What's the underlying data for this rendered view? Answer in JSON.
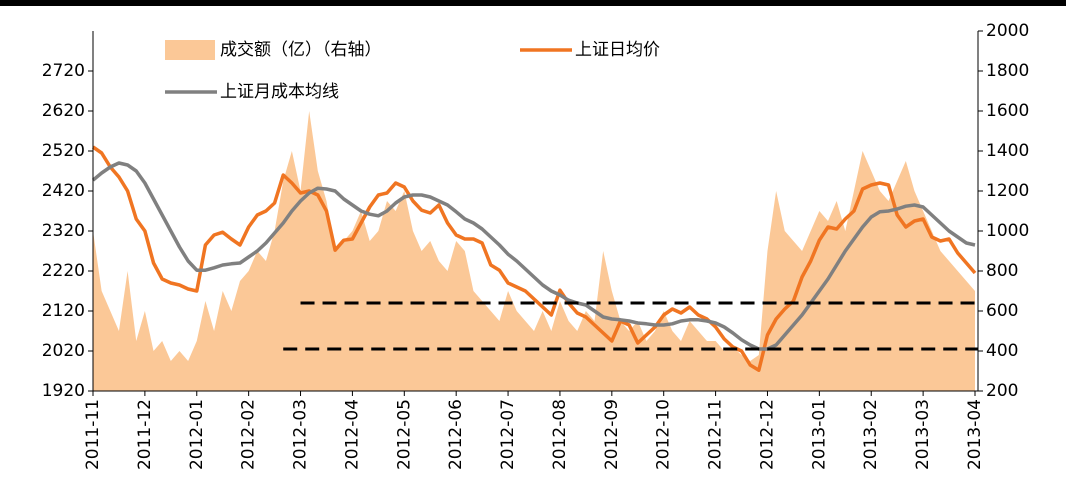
{
  "chart_data": {
    "type": "line",
    "categories": [
      "2011-11",
      null,
      null,
      null,
      null,
      null,
      "2011-12",
      null,
      null,
      null,
      null,
      null,
      "2012-01",
      null,
      null,
      null,
      null,
      null,
      "2012-02",
      null,
      null,
      null,
      null,
      null,
      "2012-03",
      null,
      null,
      null,
      null,
      null,
      "2012-04",
      null,
      null,
      null,
      null,
      null,
      "2012-05",
      null,
      null,
      null,
      null,
      null,
      "2012-06",
      null,
      null,
      null,
      null,
      null,
      "2012-07",
      null,
      null,
      null,
      null,
      null,
      "2012-08",
      null,
      null,
      null,
      null,
      null,
      "2012-09",
      null,
      null,
      null,
      null,
      null,
      "2012-10",
      null,
      null,
      null,
      null,
      null,
      "2012-11",
      null,
      null,
      null,
      null,
      null,
      "2012-12",
      null,
      null,
      null,
      null,
      null,
      "2013-01",
      null,
      null,
      null,
      null,
      null,
      "2013-02",
      null,
      null,
      null,
      null,
      null,
      "2013-03",
      null,
      null,
      null,
      null,
      null,
      "2013-04"
    ],
    "series": [
      {
        "name": "成交额（亿）（右轴）",
        "type": "area",
        "axis": "y2",
        "color": "#fbc897",
        "values": [
          1000,
          700,
          600,
          500,
          800,
          450,
          600,
          400,
          450,
          350,
          400,
          350,
          450,
          650,
          500,
          700,
          600,
          750,
          800,
          900,
          850,
          1000,
          1250,
          1400,
          1200,
          1600,
          1300,
          1150,
          900,
          950,
          1000,
          1100,
          950,
          1000,
          1150,
          1100,
          1200,
          1000,
          900,
          950,
          850,
          800,
          950,
          900,
          700,
          650,
          600,
          550,
          700,
          600,
          550,
          500,
          600,
          500,
          650,
          550,
          500,
          600,
          550,
          900,
          700,
          550,
          500,
          550,
          450,
          500,
          600,
          500,
          450,
          550,
          500,
          450,
          450,
          400,
          420,
          380,
          350,
          380,
          900,
          1200,
          1000,
          950,
          900,
          1000,
          1100,
          1050,
          1150,
          1000,
          1200,
          1400,
          1300,
          1200,
          1150,
          1250,
          1350,
          1200,
          1100,
          1000,
          900,
          850,
          800,
          750,
          700
        ]
      },
      {
        "name": "上证日均价",
        "color": "#f07522",
        "values": [
          2530,
          2515,
          2480,
          2455,
          2420,
          2350,
          2320,
          2240,
          2200,
          2190,
          2185,
          2175,
          2170,
          2285,
          2310,
          2317,
          2300,
          2285,
          2330,
          2360,
          2370,
          2390,
          2460,
          2440,
          2415,
          2420,
          2410,
          2370,
          2272,
          2297,
          2300,
          2340,
          2380,
          2410,
          2415,
          2440,
          2430,
          2395,
          2372,
          2365,
          2385,
          2340,
          2310,
          2300,
          2300,
          2290,
          2235,
          2222,
          2190,
          2180,
          2170,
          2150,
          2130,
          2110,
          2172,
          2140,
          2115,
          2105,
          2085,
          2065,
          2045,
          2095,
          2085,
          2040,
          2060,
          2080,
          2110,
          2125,
          2115,
          2130,
          2110,
          2100,
          2080,
          2050,
          2030,
          2020,
          1985,
          1972,
          2060,
          2100,
          2125,
          2145,
          2205,
          2245,
          2297,
          2330,
          2325,
          2350,
          2370,
          2425,
          2435,
          2440,
          2435,
          2360,
          2330,
          2345,
          2350,
          2305,
          2295,
          2300,
          2265,
          2240,
          2215
        ]
      },
      {
        "name": "上证月成本均线",
        "color": "#808080",
        "values": [
          2447,
          2465,
          2480,
          2490,
          2485,
          2470,
          2440,
          2400,
          2360,
          2320,
          2280,
          2245,
          2222,
          2222,
          2228,
          2235,
          2238,
          2240,
          2255,
          2270,
          2290,
          2315,
          2340,
          2370,
          2395,
          2415,
          2427,
          2425,
          2420,
          2400,
          2385,
          2370,
          2362,
          2358,
          2370,
          2390,
          2405,
          2410,
          2410,
          2405,
          2395,
          2385,
          2368,
          2350,
          2340,
          2325,
          2305,
          2285,
          2262,
          2245,
          2225,
          2205,
          2185,
          2170,
          2160,
          2147,
          2140,
          2135,
          2120,
          2105,
          2100,
          2098,
          2095,
          2090,
          2088,
          2085,
          2085,
          2088,
          2095,
          2098,
          2098,
          2095,
          2090,
          2080,
          2065,
          2048,
          2035,
          2025,
          2025,
          2035,
          2060,
          2085,
          2110,
          2140,
          2170,
          2200,
          2235,
          2270,
          2300,
          2330,
          2355,
          2368,
          2370,
          2375,
          2382,
          2385,
          2380,
          2360,
          2340,
          2320,
          2305,
          2290,
          2285
        ]
      }
    ],
    "ylim": [
      1920,
      2820
    ],
    "yticks": [
      1920,
      2020,
      2120,
      2220,
      2320,
      2420,
      2520,
      2620,
      2720
    ],
    "y2lim": [
      200,
      2000
    ],
    "y2ticks": [
      200,
      400,
      600,
      800,
      1000,
      1200,
      1400,
      1600,
      1800,
      2000
    ],
    "reference_lines": [
      {
        "value": 2140,
        "x_start": 24,
        "color": "#000000"
      },
      {
        "value": 2025,
        "x_start": 22,
        "color": "#000000"
      }
    ]
  }
}
